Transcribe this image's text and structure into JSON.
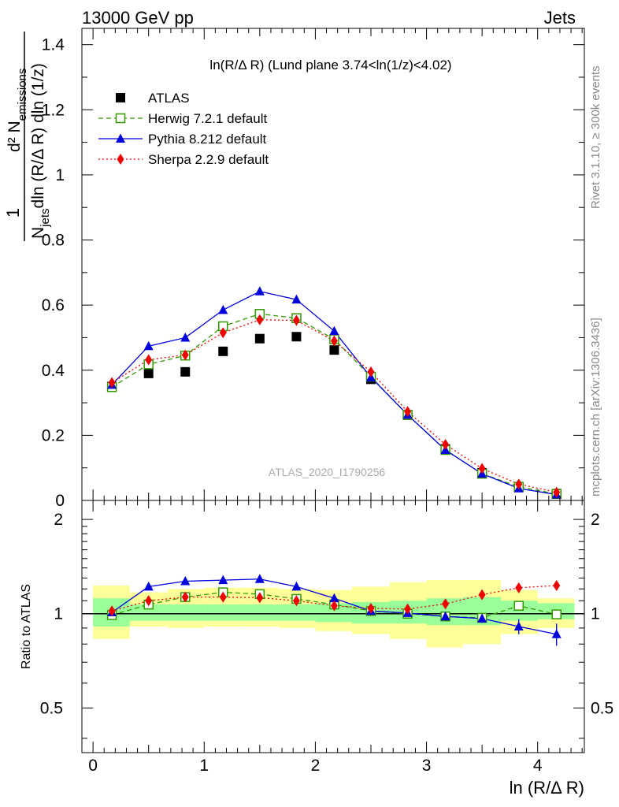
{
  "header": {
    "left": "13000 GeV pp",
    "right": "Jets"
  },
  "side": {
    "rivet": "Rivet 3.1.10, ≥ 300k events",
    "mcplots": "mcplots.cern.ch [arXiv:1306.3436]"
  },
  "chart_data": [
    {
      "type": "scatter",
      "title": "ln(R/Δ R) (Lund plane 3.74<ln(1/z)<4.02)",
      "analysis_label": "ATLAS_2020_I1790256",
      "xlabel": "ln (R/Δ R)",
      "ylabel": "1/N_jets d²N_emissions / dln (R/Δ R) dln (1/z)",
      "ylabel_parts": {
        "one": "1",
        "num": "d² N",
        "num_sub": "emissions",
        "den_a": "N",
        "den_sub": "jets",
        "den_b": "dln (R/Δ R) dln (1/z)"
      },
      "xlim": [
        -0.1,
        4.42
      ],
      "ylim": [
        0,
        1.45
      ],
      "x_ticks": [
        0,
        1,
        2,
        3,
        4
      ],
      "y_ticks": [
        0,
        0.2,
        0.4,
        0.6,
        0.8,
        1,
        1.2,
        1.4
      ],
      "y_tick_labels": [
        "0",
        "0.2",
        "0.4",
        "0.6",
        "0.8",
        "1",
        "1.2",
        "1.4"
      ],
      "x": [
        0.17,
        0.5,
        0.83,
        1.17,
        1.5,
        1.83,
        2.17,
        2.5,
        2.83,
        3.17,
        3.5,
        3.83,
        4.17
      ],
      "legend_position": "top-left",
      "series": [
        {
          "name": "ATLAS",
          "color": "#000000",
          "marker": "square",
          "line": "none",
          "values": [
            0.35,
            0.39,
            0.395,
            0.458,
            0.497,
            0.503,
            0.462,
            0.372,
            0.262,
            0.158,
            0.085,
            0.04,
            0.021
          ]
        },
        {
          "name": "Herwig 7.2.1 default",
          "color": "#339900",
          "marker": "open-square",
          "line": "dashed",
          "values": [
            0.348,
            0.418,
            0.445,
            0.535,
            0.573,
            0.56,
            0.495,
            0.38,
            0.263,
            0.155,
            0.082,
            0.042,
            0.02
          ]
        },
        {
          "name": "Pythia 8.212 default",
          "color": "#0000dd",
          "marker": "triangle",
          "line": "solid",
          "values": [
            0.355,
            0.474,
            0.5,
            0.585,
            0.642,
            0.617,
            0.52,
            0.378,
            0.263,
            0.155,
            0.082,
            0.037,
            0.018
          ]
        },
        {
          "name": "Sherpa 2.2.9 default",
          "color": "#ee0000",
          "marker": "diamond",
          "line": "dotted",
          "values": [
            0.362,
            0.432,
            0.447,
            0.515,
            0.555,
            0.553,
            0.49,
            0.395,
            0.273,
            0.172,
            0.098,
            0.05,
            0.025
          ]
        }
      ]
    },
    {
      "type": "scatter",
      "title": "",
      "xlabel": "ln (R/Δ R)",
      "ylabel": "Ratio to ATLAS",
      "xlim": [
        -0.1,
        4.42
      ],
      "ylim": [
        0.36,
        2.3
      ],
      "y_scale": "log",
      "x_ticks": [
        0,
        1,
        2,
        3,
        4
      ],
      "y_ticks": [
        0.5,
        1,
        2
      ],
      "y_tick_labels": [
        "0.5",
        "1",
        "2"
      ],
      "x": [
        0.17,
        0.5,
        0.83,
        1.17,
        1.5,
        1.83,
        2.17,
        2.5,
        2.83,
        3.17,
        3.5,
        3.83,
        4.17
      ],
      "bin_edges": [
        -0.0,
        0.33,
        0.67,
        1.0,
        1.33,
        1.67,
        2.0,
        2.33,
        2.67,
        3.0,
        3.33,
        3.67,
        4.0,
        4.33
      ],
      "uncertainty_bands": [
        {
          "name": "stat",
          "color": "#99ff99",
          "lower": [
            0.91,
            0.95,
            0.95,
            0.95,
            0.95,
            0.95,
            0.94,
            0.93,
            0.93,
            0.92,
            0.92,
            0.95,
            0.96
          ],
          "upper": [
            1.12,
            1.07,
            1.07,
            1.07,
            1.07,
            1.07,
            1.08,
            1.09,
            1.1,
            1.12,
            1.13,
            1.1,
            1.08
          ]
        },
        {
          "name": "total",
          "color": "#ffff99",
          "lower": [
            0.83,
            0.91,
            0.9,
            0.91,
            0.91,
            0.9,
            0.88,
            0.86,
            0.83,
            0.78,
            0.8,
            0.86,
            0.9
          ],
          "upper": [
            1.23,
            1.17,
            1.2,
            1.21,
            1.21,
            1.2,
            1.19,
            1.22,
            1.26,
            1.28,
            1.28,
            1.19,
            1.12
          ]
        }
      ],
      "series": [
        {
          "name": "Herwig 7.2.1 default",
          "color": "#339900",
          "marker": "open-square",
          "line": "dashed",
          "values": [
            0.99,
            1.07,
            1.13,
            1.17,
            1.155,
            1.115,
            1.07,
            1.02,
            1.0,
            0.98,
            0.97,
            1.06,
            0.995
          ]
        },
        {
          "name": "Pythia 8.212 default",
          "color": "#0000dd",
          "marker": "triangle",
          "line": "solid",
          "values": [
            1.01,
            1.22,
            1.27,
            1.28,
            1.29,
            1.22,
            1.12,
            1.02,
            1.005,
            0.98,
            0.965,
            0.91,
            0.86
          ],
          "errors": [
            0,
            0,
            0,
            0,
            0,
            0,
            0,
            0,
            0.01,
            0.02,
            0.03,
            0.05,
            0.07
          ]
        },
        {
          "name": "Sherpa 2.2.9 default",
          "color": "#ee0000",
          "marker": "diamond",
          "line": "dotted",
          "values": [
            1.02,
            1.1,
            1.13,
            1.13,
            1.125,
            1.1,
            1.06,
            1.04,
            1.035,
            1.075,
            1.15,
            1.21,
            1.23
          ]
        }
      ]
    }
  ]
}
